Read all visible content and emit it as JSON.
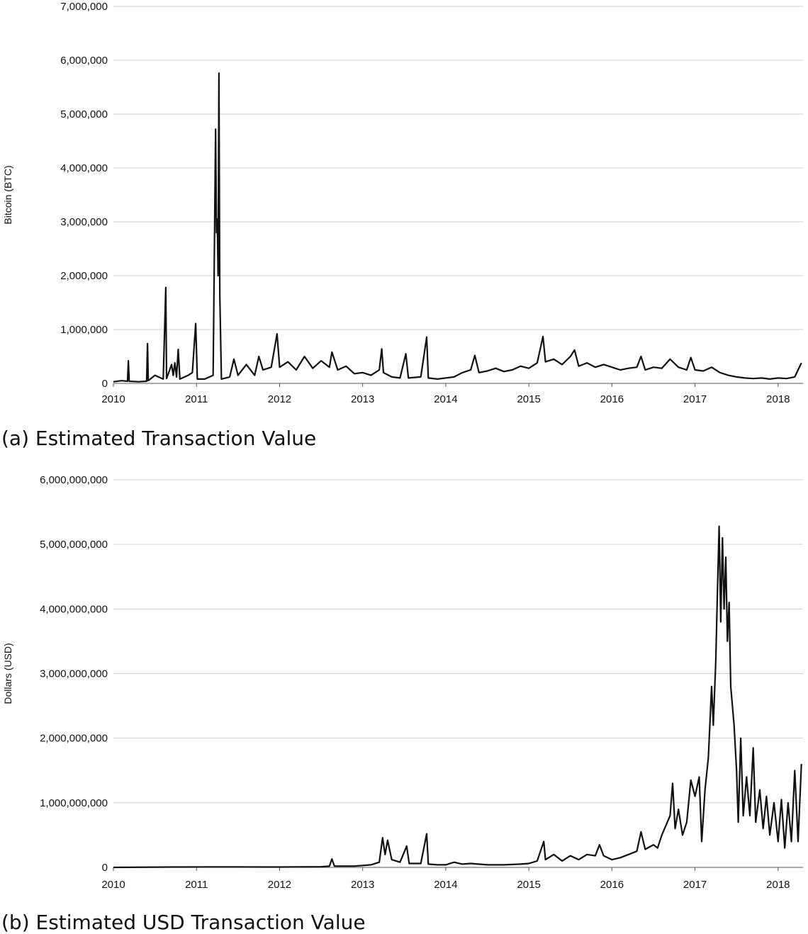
{
  "chart_data": [
    {
      "type": "line",
      "caption": "(a) Estimated Transaction Value",
      "ylabel": "Bitcoin (BTC)",
      "xlabel": "",
      "ylim": [
        0,
        7000000
      ],
      "yticks": [
        0,
        1000000,
        2000000,
        3000000,
        4000000,
        5000000,
        6000000,
        7000000
      ],
      "ytick_labels": [
        "0",
        "1,000,000",
        "2,000,000",
        "3,000,000",
        "4,000,000",
        "5,000,000",
        "6,000,000",
        "7,000,000"
      ],
      "xlim": [
        2010,
        2018.3
      ],
      "xtick_labels": [
        "2010",
        "2011",
        "2012",
        "2013",
        "2014",
        "2015",
        "2016",
        "2017",
        "2018"
      ],
      "grid": true,
      "series": [
        {
          "values": [
            [
              2010.0,
              30000
            ],
            [
              2010.1,
              50000
            ],
            [
              2010.17,
              40000
            ],
            [
              2010.18,
              420000
            ],
            [
              2010.19,
              40000
            ],
            [
              2010.3,
              30000
            ],
            [
              2010.4,
              40000
            ],
            [
              2010.41,
              740000
            ],
            [
              2010.42,
              50000
            ],
            [
              2010.5,
              150000
            ],
            [
              2010.6,
              80000
            ],
            [
              2010.63,
              1780000
            ],
            [
              2010.64,
              90000
            ],
            [
              2010.7,
              350000
            ],
            [
              2010.72,
              150000
            ],
            [
              2010.74,
              380000
            ],
            [
              2010.76,
              120000
            ],
            [
              2010.78,
              630000
            ],
            [
              2010.8,
              80000
            ],
            [
              2010.9,
              150000
            ],
            [
              2010.95,
              200000
            ],
            [
              2010.99,
              1110000
            ],
            [
              2011.01,
              80000
            ],
            [
              2011.1,
              80000
            ],
            [
              2011.2,
              150000
            ],
            [
              2011.23,
              4720000
            ],
            [
              2011.24,
              2800000
            ],
            [
              2011.25,
              3050000
            ],
            [
              2011.26,
              2000000
            ],
            [
              2011.27,
              5760000
            ],
            [
              2011.28,
              1650000
            ],
            [
              2011.3,
              80000
            ],
            [
              2011.4,
              120000
            ],
            [
              2011.45,
              450000
            ],
            [
              2011.5,
              150000
            ],
            [
              2011.6,
              350000
            ],
            [
              2011.7,
              150000
            ],
            [
              2011.75,
              500000
            ],
            [
              2011.8,
              250000
            ],
            [
              2011.9,
              300000
            ],
            [
              2011.97,
              920000
            ],
            [
              2012.0,
              300000
            ],
            [
              2012.1,
              400000
            ],
            [
              2012.2,
              250000
            ],
            [
              2012.3,
              500000
            ],
            [
              2012.4,
              280000
            ],
            [
              2012.5,
              420000
            ],
            [
              2012.6,
              300000
            ],
            [
              2012.63,
              580000
            ],
            [
              2012.7,
              250000
            ],
            [
              2012.8,
              320000
            ],
            [
              2012.9,
              180000
            ],
            [
              2013.0,
              200000
            ],
            [
              2013.1,
              150000
            ],
            [
              2013.2,
              250000
            ],
            [
              2013.23,
              640000
            ],
            [
              2013.25,
              200000
            ],
            [
              2013.35,
              120000
            ],
            [
              2013.45,
              100000
            ],
            [
              2013.52,
              550000
            ],
            [
              2013.55,
              100000
            ],
            [
              2013.7,
              120000
            ],
            [
              2013.77,
              860000
            ],
            [
              2013.79,
              100000
            ],
            [
              2013.9,
              80000
            ],
            [
              2014.0,
              100000
            ],
            [
              2014.1,
              120000
            ],
            [
              2014.2,
              200000
            ],
            [
              2014.3,
              250000
            ],
            [
              2014.35,
              520000
            ],
            [
              2014.4,
              200000
            ],
            [
              2014.5,
              230000
            ],
            [
              2014.6,
              280000
            ],
            [
              2014.7,
              220000
            ],
            [
              2014.8,
              250000
            ],
            [
              2014.9,
              320000
            ],
            [
              2015.0,
              280000
            ],
            [
              2015.1,
              380000
            ],
            [
              2015.17,
              870000
            ],
            [
              2015.2,
              400000
            ],
            [
              2015.3,
              450000
            ],
            [
              2015.4,
              350000
            ],
            [
              2015.5,
              500000
            ],
            [
              2015.55,
              620000
            ],
            [
              2015.6,
              320000
            ],
            [
              2015.7,
              380000
            ],
            [
              2015.8,
              300000
            ],
            [
              2015.9,
              350000
            ],
            [
              2016.0,
              300000
            ],
            [
              2016.1,
              250000
            ],
            [
              2016.2,
              280000
            ],
            [
              2016.3,
              300000
            ],
            [
              2016.35,
              500000
            ],
            [
              2016.4,
              250000
            ],
            [
              2016.5,
              300000
            ],
            [
              2016.6,
              280000
            ],
            [
              2016.7,
              450000
            ],
            [
              2016.8,
              300000
            ],
            [
              2016.9,
              250000
            ],
            [
              2016.95,
              480000
            ],
            [
              2017.0,
              250000
            ],
            [
              2017.1,
              230000
            ],
            [
              2017.2,
              300000
            ],
            [
              2017.3,
              200000
            ],
            [
              2017.4,
              150000
            ],
            [
              2017.5,
              120000
            ],
            [
              2017.6,
              100000
            ],
            [
              2017.7,
              90000
            ],
            [
              2017.8,
              100000
            ],
            [
              2017.9,
              80000
            ],
            [
              2018.0,
              100000
            ],
            [
              2018.1,
              90000
            ],
            [
              2018.2,
              120000
            ],
            [
              2018.28,
              380000
            ]
          ]
        }
      ]
    },
    {
      "type": "line",
      "caption": "(b) Estimated USD Transaction Value",
      "ylabel": "Dollars (USD)",
      "xlabel": "",
      "ylim": [
        0,
        6000000000
      ],
      "yticks": [
        0,
        1000000000,
        2000000000,
        3000000000,
        4000000000,
        5000000000,
        6000000000
      ],
      "ytick_labels": [
        "0",
        "1,000,000,000",
        "2,000,000,000",
        "3,000,000,000",
        "4,000,000,000",
        "5,000,000,000",
        "6,000,000,000"
      ],
      "xlim": [
        2010,
        2018.3
      ],
      "xtick_labels": [
        "2010",
        "2011",
        "2012",
        "2013",
        "2014",
        "2015",
        "2016",
        "2017",
        "2018"
      ],
      "grid": true,
      "series": [
        {
          "values": [
            [
              2010.0,
              0
            ],
            [
              2010.7,
              5000000
            ],
            [
              2011.3,
              8000000
            ],
            [
              2012.0,
              5000000
            ],
            [
              2012.5,
              10000000
            ],
            [
              2012.6,
              20000000
            ],
            [
              2012.63,
              130000000
            ],
            [
              2012.66,
              20000000
            ],
            [
              2012.9,
              20000000
            ],
            [
              2013.1,
              40000000
            ],
            [
              2013.2,
              80000000
            ],
            [
              2013.24,
              460000000
            ],
            [
              2013.27,
              200000000
            ],
            [
              2013.3,
              420000000
            ],
            [
              2013.35,
              120000000
            ],
            [
              2013.45,
              80000000
            ],
            [
              2013.53,
              330000000
            ],
            [
              2013.56,
              60000000
            ],
            [
              2013.7,
              60000000
            ],
            [
              2013.77,
              520000000
            ],
            [
              2013.79,
              50000000
            ],
            [
              2013.9,
              40000000
            ],
            [
              2014.0,
              40000000
            ],
            [
              2014.1,
              80000000
            ],
            [
              2014.2,
              50000000
            ],
            [
              2014.3,
              60000000
            ],
            [
              2014.5,
              40000000
            ],
            [
              2014.7,
              40000000
            ],
            [
              2014.9,
              50000000
            ],
            [
              2015.0,
              60000000
            ],
            [
              2015.1,
              100000000
            ],
            [
              2015.18,
              400000000
            ],
            [
              2015.2,
              120000000
            ],
            [
              2015.3,
              200000000
            ],
            [
              2015.4,
              100000000
            ],
            [
              2015.5,
              180000000
            ],
            [
              2015.6,
              120000000
            ],
            [
              2015.7,
              200000000
            ],
            [
              2015.8,
              180000000
            ],
            [
              2015.85,
              350000000
            ],
            [
              2015.9,
              180000000
            ],
            [
              2016.0,
              120000000
            ],
            [
              2016.1,
              150000000
            ],
            [
              2016.2,
              200000000
            ],
            [
              2016.3,
              250000000
            ],
            [
              2016.35,
              550000000
            ],
            [
              2016.4,
              280000000
            ],
            [
              2016.5,
              350000000
            ],
            [
              2016.55,
              300000000
            ],
            [
              2016.6,
              500000000
            ],
            [
              2016.7,
              800000000
            ],
            [
              2016.73,
              1300000000
            ],
            [
              2016.76,
              600000000
            ],
            [
              2016.8,
              900000000
            ],
            [
              2016.85,
              500000000
            ],
            [
              2016.9,
              700000000
            ],
            [
              2016.95,
              1350000000
            ],
            [
              2017.0,
              1100000000
            ],
            [
              2017.05,
              1400000000
            ],
            [
              2017.08,
              400000000
            ],
            [
              2017.12,
              1200000000
            ],
            [
              2017.16,
              1700000000
            ],
            [
              2017.2,
              2800000000
            ],
            [
              2017.22,
              2200000000
            ],
            [
              2017.25,
              3200000000
            ],
            [
              2017.27,
              4300000000
            ],
            [
              2017.29,
              5280000000
            ],
            [
              2017.31,
              3800000000
            ],
            [
              2017.33,
              5100000000
            ],
            [
              2017.35,
              4000000000
            ],
            [
              2017.37,
              4800000000
            ],
            [
              2017.39,
              3500000000
            ],
            [
              2017.41,
              4100000000
            ],
            [
              2017.43,
              2800000000
            ],
            [
              2017.47,
              2200000000
            ],
            [
              2017.5,
              1500000000
            ],
            [
              2017.52,
              700000000
            ],
            [
              2017.55,
              2000000000
            ],
            [
              2017.58,
              800000000
            ],
            [
              2017.62,
              1400000000
            ],
            [
              2017.66,
              800000000
            ],
            [
              2017.7,
              1850000000
            ],
            [
              2017.73,
              700000000
            ],
            [
              2017.78,
              1200000000
            ],
            [
              2017.82,
              600000000
            ],
            [
              2017.86,
              1100000000
            ],
            [
              2017.9,
              500000000
            ],
            [
              2017.95,
              1000000000
            ],
            [
              2018.0,
              400000000
            ],
            [
              2018.04,
              1050000000
            ],
            [
              2018.08,
              300000000
            ],
            [
              2018.12,
              1000000000
            ],
            [
              2018.16,
              400000000
            ],
            [
              2018.2,
              1500000000
            ],
            [
              2018.24,
              400000000
            ],
            [
              2018.28,
              1600000000
            ]
          ]
        }
      ]
    }
  ]
}
